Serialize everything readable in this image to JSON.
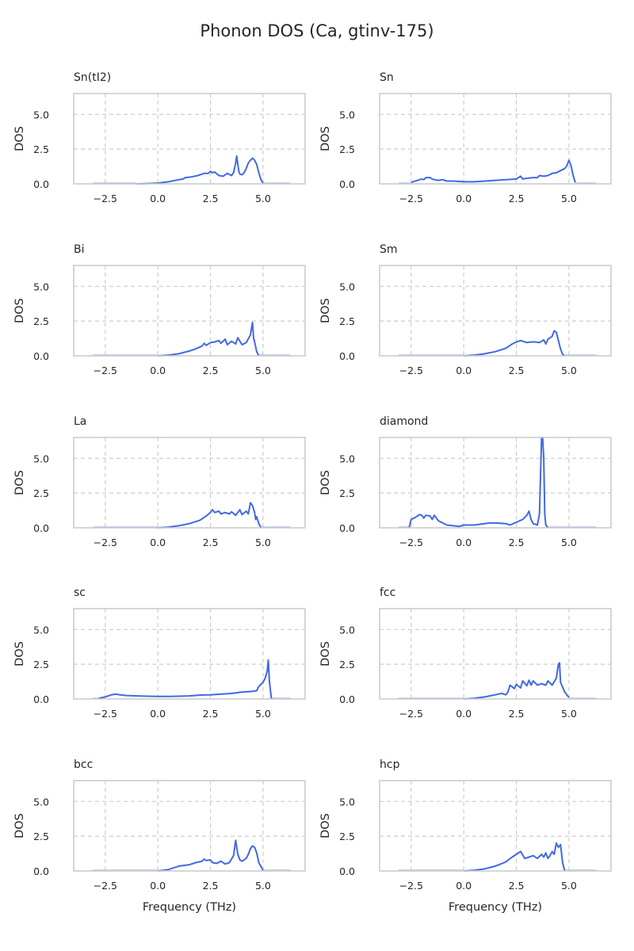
{
  "figure": {
    "suptitle": "Phonon DOS (Ca, gtinv-175)"
  },
  "chart_data": [
    {
      "type": "line",
      "title": "Sn(tI2)",
      "xlabel": "",
      "ylabel": "DOS",
      "xlim": [
        -4.0,
        7.0
      ],
      "ylim": [
        0,
        6.5
      ],
      "xticks": [
        "−2.5",
        "0.0",
        "2.5",
        "5.0"
      ],
      "yticks": [
        "0.0",
        "2.5",
        "5.0"
      ],
      "grid": true,
      "line_color": "#4169e1",
      "series": [
        {
          "x": [
            -1.0,
            -0.5,
            0.0,
            0.5,
            1.0,
            1.2,
            1.3,
            1.6,
            1.9,
            2.2,
            2.4,
            2.5,
            2.6,
            2.7,
            2.9,
            3.1,
            3.3,
            3.5,
            3.6,
            3.7,
            3.75,
            3.8,
            3.85,
            3.9,
            4.0,
            4.1,
            4.2,
            4.3,
            4.4,
            4.5,
            4.6,
            4.7,
            4.8,
            4.9,
            5.0
          ],
          "y": [
            0.0,
            0.02,
            0.05,
            0.15,
            0.3,
            0.35,
            0.45,
            0.5,
            0.6,
            0.75,
            0.75,
            0.9,
            0.8,
            0.85,
            0.6,
            0.55,
            0.75,
            0.6,
            0.8,
            1.5,
            2.0,
            1.4,
            0.9,
            0.7,
            0.65,
            0.8,
            1.1,
            1.5,
            1.7,
            1.85,
            1.7,
            1.4,
            0.8,
            0.3,
            0.05
          ]
        }
      ]
    },
    {
      "type": "line",
      "title": "Sn",
      "xlabel": "",
      "ylabel": "DOS",
      "xlim": [
        -4.0,
        7.0
      ],
      "ylim": [
        0,
        6.5
      ],
      "xticks": [
        "−2.5",
        "0.0",
        "2.5",
        "5.0"
      ],
      "yticks": [
        "0.0",
        "2.5",
        "5.0"
      ],
      "grid": true,
      "line_color": "#4169e1",
      "series": [
        {
          "x": [
            -2.5,
            -2.2,
            -2.0,
            -1.9,
            -1.8,
            -1.6,
            -1.5,
            -1.4,
            -1.2,
            -1.0,
            -0.8,
            -0.5,
            0.0,
            0.5,
            1.0,
            1.5,
            2.0,
            2.5,
            2.7,
            2.8,
            3.0,
            3.3,
            3.5,
            3.6,
            3.8,
            4.0,
            4.2,
            4.4,
            4.6,
            4.8,
            4.9,
            5.0,
            5.1,
            5.2,
            5.3
          ],
          "y": [
            0.1,
            0.25,
            0.35,
            0.3,
            0.45,
            0.45,
            0.35,
            0.3,
            0.25,
            0.3,
            0.2,
            0.2,
            0.15,
            0.15,
            0.2,
            0.25,
            0.3,
            0.35,
            0.55,
            0.35,
            0.4,
            0.45,
            0.45,
            0.6,
            0.55,
            0.6,
            0.75,
            0.8,
            0.95,
            1.1,
            1.3,
            1.7,
            1.3,
            0.6,
            0.1
          ]
        }
      ]
    },
    {
      "type": "line",
      "title": "Bi",
      "xlabel": "",
      "ylabel": "DOS",
      "xlim": [
        -4.0,
        7.0
      ],
      "ylim": [
        0,
        6.5
      ],
      "xticks": [
        "−2.5",
        "0.0",
        "2.5",
        "5.0"
      ],
      "yticks": [
        "0.0",
        "2.5",
        "5.0"
      ],
      "grid": true,
      "line_color": "#4169e1",
      "series": [
        {
          "x": [
            0.0,
            0.5,
            1.0,
            1.5,
            1.8,
            2.1,
            2.2,
            2.3,
            2.5,
            2.7,
            2.9,
            3.0,
            3.2,
            3.3,
            3.5,
            3.7,
            3.8,
            4.0,
            4.2,
            4.4,
            4.5,
            4.55,
            4.6,
            4.7,
            4.8
          ],
          "y": [
            0.0,
            0.05,
            0.15,
            0.35,
            0.5,
            0.7,
            0.9,
            0.75,
            0.95,
            1.0,
            1.1,
            0.9,
            1.2,
            0.8,
            1.05,
            0.85,
            1.3,
            0.8,
            0.95,
            1.5,
            2.4,
            1.3,
            1.0,
            0.3,
            0.0
          ]
        }
      ]
    },
    {
      "type": "line",
      "title": "Sm",
      "xlabel": "",
      "ylabel": "DOS",
      "xlim": [
        -4.0,
        7.0
      ],
      "ylim": [
        0,
        6.5
      ],
      "xticks": [
        "−2.5",
        "0.0",
        "2.5",
        "5.0"
      ],
      "yticks": [
        "0.0",
        "2.5",
        "5.0"
      ],
      "grid": true,
      "line_color": "#4169e1",
      "series": [
        {
          "x": [
            0.0,
            0.5,
            1.0,
            1.5,
            2.0,
            2.3,
            2.5,
            2.7,
            3.0,
            3.2,
            3.4,
            3.6,
            3.8,
            3.9,
            4.0,
            4.2,
            4.3,
            4.4,
            4.5,
            4.6,
            4.7,
            4.8
          ],
          "y": [
            0.0,
            0.05,
            0.15,
            0.3,
            0.55,
            0.85,
            1.0,
            1.1,
            0.95,
            1.0,
            1.0,
            0.95,
            1.15,
            0.85,
            1.2,
            1.4,
            1.8,
            1.7,
            1.1,
            0.5,
            0.1,
            0.0
          ]
        }
      ]
    },
    {
      "type": "line",
      "title": "La",
      "xlabel": "",
      "ylabel": "DOS",
      "xlim": [
        -4.0,
        7.0
      ],
      "ylim": [
        0,
        6.5
      ],
      "xticks": [
        "−2.5",
        "0.0",
        "2.5",
        "5.0"
      ],
      "yticks": [
        "0.0",
        "2.5",
        "5.0"
      ],
      "grid": true,
      "line_color": "#4169e1",
      "series": [
        {
          "x": [
            0.0,
            0.5,
            1.0,
            1.5,
            2.0,
            2.3,
            2.5,
            2.6,
            2.7,
            2.9,
            3.0,
            3.2,
            3.4,
            3.5,
            3.7,
            3.9,
            4.0,
            4.2,
            4.3,
            4.4,
            4.5,
            4.6,
            4.65,
            4.7,
            4.8,
            4.9
          ],
          "y": [
            0.0,
            0.05,
            0.15,
            0.3,
            0.55,
            0.85,
            1.1,
            1.3,
            1.1,
            1.2,
            1.0,
            1.1,
            1.0,
            1.15,
            0.9,
            1.3,
            0.95,
            1.2,
            1.0,
            1.8,
            1.6,
            1.1,
            0.6,
            0.8,
            0.3,
            0.0
          ]
        }
      ]
    },
    {
      "type": "line",
      "title": "diamond",
      "xlabel": "",
      "ylabel": "DOS",
      "xlim": [
        -4.0,
        7.0
      ],
      "ylim": [
        0,
        6.5
      ],
      "xticks": [
        "−2.5",
        "0.0",
        "2.5",
        "5.0"
      ],
      "yticks": [
        "0.0",
        "2.5",
        "5.0"
      ],
      "grid": true,
      "line_color": "#4169e1",
      "series": [
        {
          "x": [
            -2.6,
            -2.5,
            -2.3,
            -2.1,
            -2.0,
            -1.9,
            -1.8,
            -1.6,
            -1.5,
            -1.4,
            -1.2,
            -1.0,
            -0.8,
            -0.5,
            -0.2,
            0.0,
            0.5,
            1.0,
            1.2,
            1.5,
            2.0,
            2.2,
            2.5,
            2.8,
            3.0,
            3.1,
            3.2,
            3.3,
            3.5,
            3.6,
            3.7,
            3.75,
            3.8,
            3.85,
            3.9,
            4.0
          ],
          "y": [
            0.0,
            0.6,
            0.75,
            0.95,
            0.9,
            0.7,
            0.9,
            0.85,
            0.6,
            0.9,
            0.5,
            0.35,
            0.2,
            0.15,
            0.1,
            0.2,
            0.2,
            0.3,
            0.35,
            0.35,
            0.3,
            0.2,
            0.4,
            0.6,
            0.9,
            1.2,
            0.6,
            0.3,
            0.2,
            1.0,
            6.5,
            6.5,
            5.0,
            1.0,
            0.2,
            0.0
          ]
        }
      ]
    },
    {
      "type": "line",
      "title": "sc",
      "xlabel": "",
      "ylabel": "DOS",
      "xlim": [
        -4.0,
        7.0
      ],
      "ylim": [
        0,
        6.5
      ],
      "xticks": [
        "−2.5",
        "0.0",
        "2.5",
        "5.0"
      ],
      "yticks": [
        "0.0",
        "2.5",
        "5.0"
      ],
      "grid": true,
      "line_color": "#4169e1",
      "series": [
        {
          "x": [
            -2.8,
            -2.5,
            -2.2,
            -2.0,
            -1.8,
            -1.5,
            -1.0,
            -0.5,
            0.0,
            0.5,
            1.0,
            1.5,
            2.0,
            2.5,
            3.0,
            3.5,
            4.0,
            4.5,
            4.7,
            4.8,
            5.0,
            5.1,
            5.2,
            5.25,
            5.3,
            5.4
          ],
          "y": [
            0.05,
            0.15,
            0.3,
            0.35,
            0.3,
            0.25,
            0.22,
            0.2,
            0.18,
            0.18,
            0.2,
            0.22,
            0.28,
            0.3,
            0.35,
            0.4,
            0.5,
            0.55,
            0.6,
            0.9,
            1.2,
            1.5,
            2.0,
            2.8,
            1.3,
            0.0
          ]
        }
      ]
    },
    {
      "type": "line",
      "title": "fcc",
      "xlabel": "",
      "ylabel": "DOS",
      "xlim": [
        -4.0,
        7.0
      ],
      "ylim": [
        0,
        6.5
      ],
      "xticks": [
        "−2.5",
        "0.0",
        "2.5",
        "5.0"
      ],
      "yticks": [
        "0.0",
        "2.5",
        "5.0"
      ],
      "grid": true,
      "line_color": "#4169e1",
      "series": [
        {
          "x": [
            0.0,
            0.5,
            1.0,
            1.5,
            1.8,
            2.0,
            2.1,
            2.2,
            2.4,
            2.5,
            2.7,
            2.8,
            3.0,
            3.1,
            3.2,
            3.3,
            3.5,
            3.7,
            3.9,
            4.0,
            4.2,
            4.4,
            4.5,
            4.55,
            4.6,
            4.8,
            5.0
          ],
          "y": [
            0.0,
            0.05,
            0.15,
            0.3,
            0.4,
            0.3,
            0.5,
            1.0,
            0.75,
            1.05,
            0.8,
            1.3,
            0.95,
            1.35,
            1.0,
            1.3,
            1.0,
            1.1,
            1.0,
            1.3,
            1.0,
            1.5,
            2.5,
            2.6,
            1.2,
            0.5,
            0.1
          ]
        }
      ]
    },
    {
      "type": "line",
      "title": "bcc",
      "xlabel": "Frequency (THz)",
      "ylabel": "DOS",
      "xlim": [
        -4.0,
        7.0
      ],
      "ylim": [
        0,
        6.5
      ],
      "xticks": [
        "−2.5",
        "0.0",
        "2.5",
        "5.0"
      ],
      "yticks": [
        "0.0",
        "2.5",
        "5.0"
      ],
      "grid": true,
      "line_color": "#4169e1",
      "series": [
        {
          "x": [
            0.0,
            0.5,
            1.0,
            1.5,
            1.8,
            2.1,
            2.2,
            2.3,
            2.5,
            2.6,
            2.8,
            3.0,
            3.2,
            3.4,
            3.6,
            3.7,
            3.8,
            3.9,
            4.0,
            4.2,
            4.3,
            4.4,
            4.5,
            4.6,
            4.7,
            4.8,
            5.0
          ],
          "y": [
            0.0,
            0.1,
            0.35,
            0.45,
            0.6,
            0.7,
            0.85,
            0.75,
            0.8,
            0.6,
            0.55,
            0.7,
            0.5,
            0.6,
            1.1,
            2.2,
            1.2,
            0.8,
            0.7,
            0.9,
            1.2,
            1.6,
            1.8,
            1.7,
            1.3,
            0.6,
            0.05
          ]
        }
      ]
    },
    {
      "type": "line",
      "title": "hcp",
      "xlabel": "Frequency (THz)",
      "ylabel": "DOS",
      "xlim": [
        -4.0,
        7.0
      ],
      "ylim": [
        0,
        6.5
      ],
      "xticks": [
        "−2.5",
        "0.0",
        "2.5",
        "5.0"
      ],
      "yticks": [
        "0.0",
        "2.5",
        "5.0"
      ],
      "grid": true,
      "line_color": "#4169e1",
      "series": [
        {
          "x": [
            0.0,
            0.5,
            1.0,
            1.5,
            2.0,
            2.3,
            2.5,
            2.7,
            2.9,
            3.1,
            3.3,
            3.5,
            3.7,
            3.8,
            3.9,
            4.0,
            4.1,
            4.2,
            4.3,
            4.4,
            4.5,
            4.6,
            4.7,
            4.8
          ],
          "y": [
            0.0,
            0.05,
            0.15,
            0.35,
            0.65,
            1.0,
            1.2,
            1.4,
            0.9,
            1.0,
            1.1,
            0.9,
            1.2,
            1.0,
            1.3,
            0.9,
            1.1,
            1.4,
            1.2,
            2.0,
            1.7,
            1.9,
            0.6,
            0.0
          ]
        }
      ]
    }
  ]
}
